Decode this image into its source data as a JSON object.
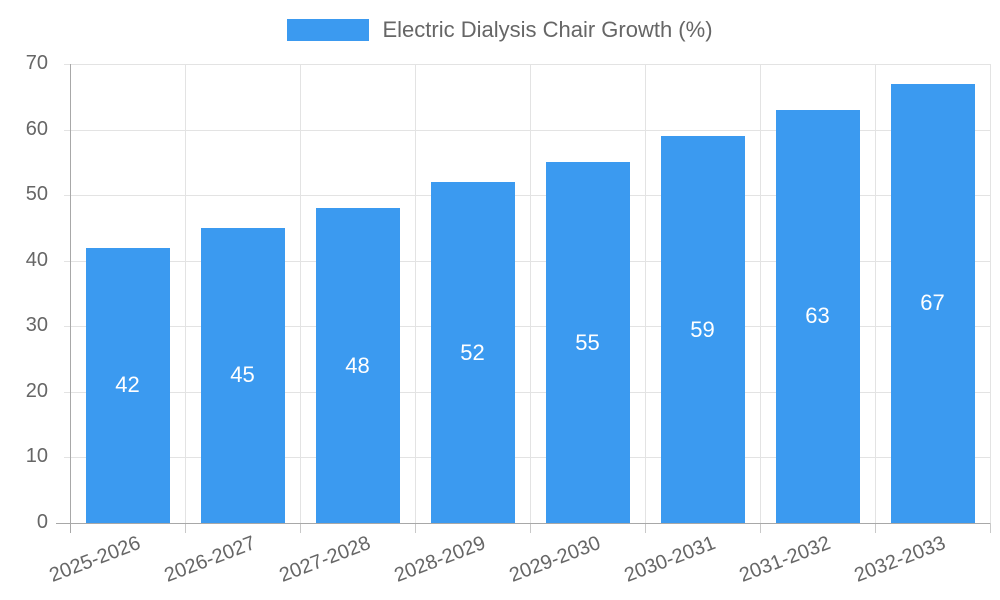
{
  "chart_data": {
    "type": "bar",
    "title": "Electric Dialysis Chair Growth (%)",
    "categories": [
      "2025-2026",
      "2026-2027",
      "2027-2028",
      "2028-2029",
      "2029-2030",
      "2030-2031",
      "2031-2032",
      "2032-2033"
    ],
    "values": [
      42,
      45,
      48,
      52,
      55,
      59,
      63,
      67
    ],
    "xlabel": "",
    "ylabel": "",
    "ylim": [
      0,
      70
    ],
    "y_ticks": [
      0,
      10,
      20,
      30,
      40,
      50,
      60,
      70
    ],
    "grid": true,
    "legend_position": "top-center",
    "value_label_position": "inside-center",
    "colors": {
      "bar": "#3B9AF0",
      "value_label": "#FFFFFF",
      "axis_text": "#666666",
      "grid_line": "#E3E3E3",
      "axis_line": "#A8A8A8",
      "tick_mark": "#C9C9C9"
    }
  }
}
